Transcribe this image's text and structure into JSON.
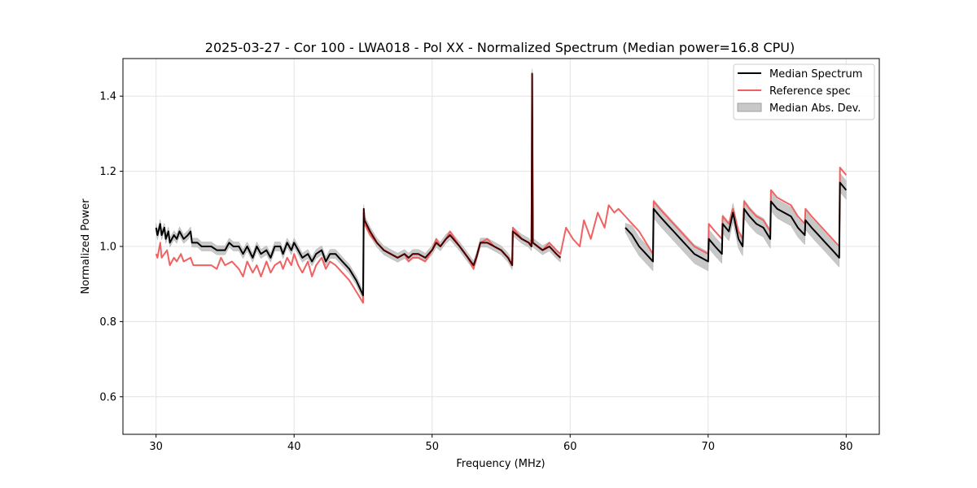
{
  "chart_data": {
    "type": "line",
    "title": "2025-03-27 - Cor 100 - LWA018 - Pol XX - Normalized Spectrum (Median power=16.8 CPU)",
    "xlabel": "Frequency (MHz)",
    "ylabel": "Normalized Power",
    "xlim": [
      27.6,
      82.4
    ],
    "ylim": [
      0.5,
      1.5
    ],
    "xticks": [
      30,
      40,
      50,
      60,
      70,
      80
    ],
    "yticks": [
      0.6,
      0.8,
      1.0,
      1.2,
      1.4
    ],
    "xtick_labels": [
      "30",
      "40",
      "50",
      "60",
      "70",
      "80"
    ],
    "ytick_labels": [
      "0.6",
      "0.8",
      "1.0",
      "1.2",
      "1.4"
    ],
    "grid": true,
    "legend_position": "upper right",
    "legend": [
      "Median Spectrum",
      "Reference spec",
      "Median Abs. Dev."
    ],
    "colors": {
      "median": "#000000",
      "reference": "#f06262",
      "mad_fill": "#c8c8c8",
      "overlap": "#8b0000"
    },
    "series": [
      {
        "name": "Median Spectrum",
        "segments": [
          [
            [
              30.0,
              1.05
            ],
            [
              30.1,
              1.03
            ],
            [
              30.3,
              1.06
            ],
            [
              30.4,
              1.03
            ],
            [
              30.6,
              1.05
            ],
            [
              30.7,
              1.02
            ],
            [
              30.9,
              1.04
            ],
            [
              31.0,
              1.01
            ],
            [
              31.3,
              1.03
            ],
            [
              31.5,
              1.02
            ],
            [
              31.7,
              1.04
            ],
            [
              32.0,
              1.02
            ],
            [
              32.3,
              1.03
            ],
            [
              32.5,
              1.04
            ],
            [
              32.6,
              1.01
            ],
            [
              33.0,
              1.01
            ],
            [
              33.3,
              1.0
            ],
            [
              34.0,
              1.0
            ],
            [
              34.4,
              0.99
            ],
            [
              35.0,
              0.99
            ],
            [
              35.3,
              1.01
            ],
            [
              35.6,
              1.0
            ],
            [
              36.0,
              1.0
            ],
            [
              36.3,
              0.98
            ],
            [
              36.6,
              1.0
            ],
            [
              37.0,
              0.97
            ],
            [
              37.3,
              1.0
            ],
            [
              37.6,
              0.98
            ],
            [
              38.0,
              0.99
            ],
            [
              38.3,
              0.97
            ],
            [
              38.6,
              1.0
            ],
            [
              39.0,
              1.0
            ],
            [
              39.2,
              0.98
            ],
            [
              39.5,
              1.01
            ],
            [
              39.8,
              0.99
            ],
            [
              40.0,
              1.01
            ],
            [
              40.3,
              0.99
            ],
            [
              40.6,
              0.97
            ],
            [
              41.0,
              0.98
            ],
            [
              41.3,
              0.96
            ],
            [
              41.6,
              0.98
            ],
            [
              42.0,
              0.99
            ],
            [
              42.3,
              0.96
            ],
            [
              42.6,
              0.98
            ],
            [
              43.0,
              0.98
            ],
            [
              43.5,
              0.96
            ],
            [
              44.0,
              0.94
            ],
            [
              44.5,
              0.91
            ],
            [
              45.0,
              0.87
            ],
            [
              45.05,
              1.1
            ],
            [
              45.1,
              1.07
            ],
            [
              45.5,
              1.04
            ],
            [
              46.0,
              1.01
            ],
            [
              46.5,
              0.99
            ],
            [
              47.0,
              0.98
            ],
            [
              47.5,
              0.97
            ],
            [
              48.0,
              0.98
            ],
            [
              48.3,
              0.97
            ],
            [
              48.6,
              0.98
            ],
            [
              49.0,
              0.98
            ],
            [
              49.5,
              0.97
            ],
            [
              50.0,
              0.99
            ],
            [
              50.3,
              1.01
            ],
            [
              50.6,
              1.0
            ],
            [
              51.0,
              1.02
            ],
            [
              51.3,
              1.03
            ],
            [
              52.0,
              1.0
            ],
            [
              52.6,
              0.97
            ],
            [
              53.0,
              0.95
            ],
            [
              53.2,
              0.97
            ],
            [
              53.5,
              1.01
            ],
            [
              54.0,
              1.01
            ],
            [
              54.5,
              1.0
            ],
            [
              55.0,
              0.99
            ],
            [
              55.5,
              0.97
            ],
            [
              55.8,
              0.95
            ],
            [
              55.85,
              1.04
            ],
            [
              56.5,
              1.02
            ],
            [
              57.0,
              1.01
            ],
            [
              57.2,
              1.0
            ],
            [
              57.25,
              1.46
            ],
            [
              57.3,
              1.01
            ],
            [
              58.0,
              0.99
            ],
            [
              58.5,
              1.0
            ],
            [
              59.0,
              0.98
            ],
            [
              59.3,
              0.97
            ]
          ],
          [
            [
              64.0,
              1.05
            ],
            [
              64.5,
              1.03
            ],
            [
              65.0,
              1.0
            ],
            [
              65.5,
              0.98
            ],
            [
              66.0,
              0.96
            ],
            [
              66.05,
              1.1
            ],
            [
              66.5,
              1.08
            ],
            [
              67.0,
              1.06
            ],
            [
              67.5,
              1.04
            ],
            [
              68.0,
              1.02
            ],
            [
              68.5,
              1.0
            ],
            [
              69.0,
              0.98
            ],
            [
              69.5,
              0.97
            ],
            [
              70.0,
              0.96
            ],
            [
              70.05,
              1.02
            ],
            [
              70.5,
              1.0
            ],
            [
              71.0,
              0.98
            ],
            [
              71.05,
              1.06
            ],
            [
              71.5,
              1.04
            ],
            [
              71.8,
              1.09
            ],
            [
              72.2,
              1.02
            ],
            [
              72.5,
              1.0
            ],
            [
              72.6,
              1.1
            ],
            [
              73.0,
              1.08
            ],
            [
              73.5,
              1.06
            ],
            [
              74.0,
              1.05
            ],
            [
              74.5,
              1.02
            ],
            [
              74.55,
              1.12
            ],
            [
              75.0,
              1.1
            ],
            [
              75.5,
              1.09
            ],
            [
              76.0,
              1.08
            ],
            [
              76.5,
              1.05
            ],
            [
              77.0,
              1.03
            ],
            [
              77.05,
              1.07
            ],
            [
              77.5,
              1.05
            ],
            [
              78.0,
              1.03
            ],
            [
              78.5,
              1.01
            ],
            [
              79.0,
              0.99
            ],
            [
              79.5,
              0.97
            ],
            [
              79.55,
              1.17
            ],
            [
              80.0,
              1.15
            ]
          ]
        ]
      },
      {
        "name": "Reference spec",
        "segments": [
          [
            [
              30.0,
              0.98
            ],
            [
              30.1,
              0.97
            ],
            [
              30.3,
              1.01
            ],
            [
              30.4,
              0.97
            ],
            [
              30.6,
              0.98
            ],
            [
              30.8,
              0.99
            ],
            [
              31.0,
              0.95
            ],
            [
              31.3,
              0.97
            ],
            [
              31.5,
              0.96
            ],
            [
              31.8,
              0.98
            ],
            [
              32.0,
              0.96
            ],
            [
              32.5,
              0.97
            ],
            [
              32.7,
              0.95
            ],
            [
              33.0,
              0.95
            ],
            [
              34.0,
              0.95
            ],
            [
              34.4,
              0.94
            ],
            [
              34.7,
              0.97
            ],
            [
              35.0,
              0.95
            ],
            [
              35.5,
              0.96
            ],
            [
              36.0,
              0.94
            ],
            [
              36.3,
              0.92
            ],
            [
              36.6,
              0.96
            ],
            [
              37.0,
              0.93
            ],
            [
              37.3,
              0.95
            ],
            [
              37.6,
              0.92
            ],
            [
              38.0,
              0.96
            ],
            [
              38.3,
              0.93
            ],
            [
              38.6,
              0.95
            ],
            [
              39.0,
              0.96
            ],
            [
              39.2,
              0.94
            ],
            [
              39.5,
              0.97
            ],
            [
              39.8,
              0.95
            ],
            [
              40.0,
              0.98
            ],
            [
              40.3,
              0.95
            ],
            [
              40.6,
              0.93
            ],
            [
              41.0,
              0.96
            ],
            [
              41.3,
              0.92
            ],
            [
              41.6,
              0.95
            ],
            [
              42.0,
              0.97
            ],
            [
              42.3,
              0.94
            ],
            [
              42.6,
              0.96
            ],
            [
              43.0,
              0.95
            ],
            [
              43.5,
              0.93
            ],
            [
              44.0,
              0.91
            ],
            [
              44.5,
              0.88
            ],
            [
              45.0,
              0.85
            ],
            [
              45.05,
              1.09
            ],
            [
              45.1,
              1.06
            ],
            [
              45.5,
              1.03
            ],
            [
              46.0,
              1.01
            ],
            [
              46.5,
              0.99
            ],
            [
              47.0,
              0.98
            ],
            [
              47.5,
              0.97
            ],
            [
              48.0,
              0.98
            ],
            [
              48.3,
              0.96
            ],
            [
              48.6,
              0.97
            ],
            [
              49.0,
              0.97
            ],
            [
              49.5,
              0.96
            ],
            [
              50.0,
              0.99
            ],
            [
              50.3,
              1.02
            ],
            [
              50.6,
              1.0
            ],
            [
              51.0,
              1.02
            ],
            [
              51.3,
              1.04
            ],
            [
              52.0,
              1.0
            ],
            [
              52.6,
              0.97
            ],
            [
              53.0,
              0.94
            ],
            [
              53.2,
              0.97
            ],
            [
              53.5,
              1.01
            ],
            [
              54.0,
              1.02
            ],
            [
              54.5,
              1.0
            ],
            [
              55.0,
              0.99
            ],
            [
              55.5,
              0.97
            ],
            [
              55.8,
              0.95
            ],
            [
              55.85,
              1.05
            ],
            [
              56.5,
              1.02
            ],
            [
              57.0,
              1.01
            ],
            [
              57.2,
              1.0
            ],
            [
              57.25,
              1.27
            ],
            [
              57.3,
              1.01
            ],
            [
              58.0,
              0.99
            ],
            [
              58.5,
              1.01
            ],
            [
              59.0,
              0.99
            ],
            [
              59.3,
              0.98
            ],
            [
              59.7,
              1.05
            ],
            [
              60.2,
              1.02
            ],
            [
              60.7,
              1.0
            ],
            [
              61.0,
              1.07
            ],
            [
              61.5,
              1.02
            ],
            [
              62.0,
              1.09
            ],
            [
              62.5,
              1.05
            ],
            [
              62.8,
              1.11
            ],
            [
              63.2,
              1.09
            ],
            [
              63.5,
              1.1
            ],
            [
              64.0,
              1.08
            ],
            [
              64.5,
              1.06
            ],
            [
              65.0,
              1.04
            ],
            [
              65.5,
              1.01
            ],
            [
              66.0,
              0.98
            ],
            [
              66.05,
              1.12
            ],
            [
              66.5,
              1.1
            ],
            [
              67.0,
              1.08
            ],
            [
              67.5,
              1.06
            ],
            [
              68.0,
              1.04
            ],
            [
              68.5,
              1.02
            ],
            [
              69.0,
              1.0
            ],
            [
              69.5,
              0.99
            ],
            [
              70.0,
              0.98
            ],
            [
              70.05,
              1.06
            ],
            [
              70.5,
              1.04
            ],
            [
              71.0,
              1.02
            ],
            [
              71.05,
              1.08
            ],
            [
              71.5,
              1.06
            ],
            [
              71.8,
              1.1
            ],
            [
              72.2,
              1.04
            ],
            [
              72.5,
              1.02
            ],
            [
              72.6,
              1.12
            ],
            [
              73.0,
              1.1
            ],
            [
              73.5,
              1.08
            ],
            [
              74.0,
              1.07
            ],
            [
              74.5,
              1.04
            ],
            [
              74.55,
              1.15
            ],
            [
              75.0,
              1.13
            ],
            [
              75.5,
              1.12
            ],
            [
              76.0,
              1.11
            ],
            [
              76.5,
              1.08
            ],
            [
              77.0,
              1.06
            ],
            [
              77.05,
              1.1
            ],
            [
              77.5,
              1.08
            ],
            [
              78.0,
              1.06
            ],
            [
              78.5,
              1.04
            ],
            [
              79.0,
              1.02
            ],
            [
              79.5,
              1.0
            ],
            [
              79.55,
              1.21
            ],
            [
              80.0,
              1.19
            ]
          ]
        ]
      },
      {
        "name": "Median Abs. Dev.",
        "band_halfwidth": 0.012,
        "band_halfwidth_high": 0.025
      }
    ]
  }
}
